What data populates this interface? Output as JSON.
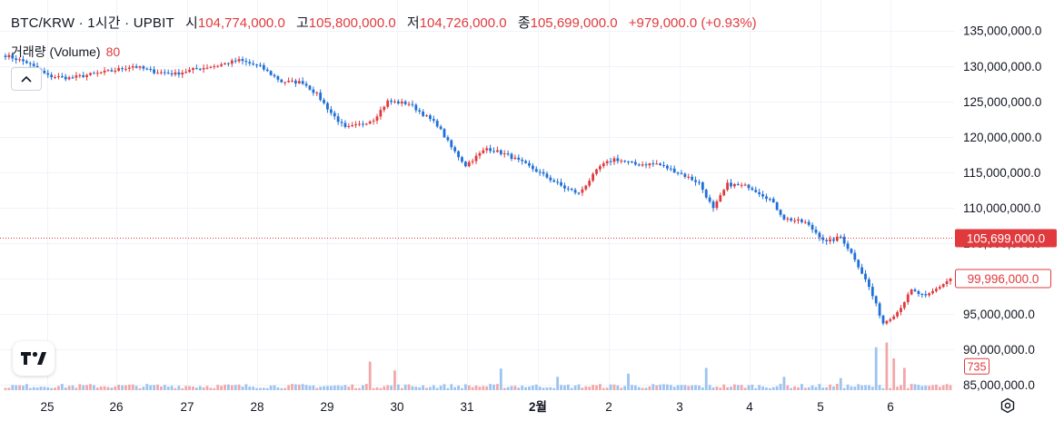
{
  "legend": {
    "symbol": "BTC/KRW · 1시간 · UPBIT",
    "open_label": "시",
    "open_value": "104,774,000.0",
    "high_label": "고",
    "high_value": "105,800,000.0",
    "low_label": "저",
    "low_value": "104,726,000.0",
    "close_label": "종",
    "close_value": "105,699,000.0",
    "change": "+979,000.0 (+0.93%)"
  },
  "volume_legend": {
    "label": "거래량 (Volume)",
    "value": "80"
  },
  "logo_text": "17",
  "colors": {
    "up": "#e03a3e",
    "down": "#1f6fd8",
    "grid": "#f0f3fa",
    "axis_text": "#131722",
    "price_line": "#e03a3e",
    "volume_up": "#f2a7a9",
    "volume_down": "#9dc3ef"
  },
  "chart_data": {
    "type": "candlestick",
    "symbol": "BTC/KRW",
    "interval": "1시간",
    "exchange": "UPBIT",
    "x_tick_labels": [
      "25",
      "26",
      "27",
      "28",
      "29",
      "30",
      "31",
      "2월",
      "2",
      "3",
      "4",
      "5",
      "6"
    ],
    "y_tick_labels": [
      "135,000,000.0",
      "130,000,000.0",
      "125,000,000.0",
      "120,000,000.0",
      "115,000,000.0",
      "110,000,000.0",
      "105,000,000.0",
      "100,000,000.0",
      "95,000,000.0",
      "90,000,000.0",
      "85,000,000.0"
    ],
    "y_ticks": [
      135000000,
      130000000,
      125000000,
      120000000,
      115000000,
      110000000,
      105000000,
      100000000,
      95000000,
      90000000,
      85000000
    ],
    "ylim": [
      84500000,
      136500000
    ],
    "price_trajectory": [
      [
        0,
        131500000
      ],
      [
        6,
        130500000
      ],
      [
        12,
        128600000
      ],
      [
        18,
        128300000
      ],
      [
        24,
        128800000
      ],
      [
        30,
        129300000
      ],
      [
        36,
        130000000
      ],
      [
        42,
        129200000
      ],
      [
        48,
        128900000
      ],
      [
        54,
        129600000
      ],
      [
        60,
        130100000
      ],
      [
        66,
        130800000
      ],
      [
        72,
        129900000
      ],
      [
        78,
        127800000
      ],
      [
        84,
        127700000
      ],
      [
        88,
        126000000
      ],
      [
        92,
        123400000
      ],
      [
        96,
        121200000
      ],
      [
        100,
        121700000
      ],
      [
        104,
        122500000
      ],
      [
        108,
        125000000
      ],
      [
        114,
        124700000
      ],
      [
        118,
        123200000
      ],
      [
        122,
        121700000
      ],
      [
        126,
        118500000
      ],
      [
        130,
        116000000
      ],
      [
        136,
        118400000
      ],
      [
        142,
        117400000
      ],
      [
        148,
        115800000
      ],
      [
        152,
        114600000
      ],
      [
        158,
        112800000
      ],
      [
        162,
        112000000
      ],
      [
        168,
        115800000
      ],
      [
        172,
        116900000
      ],
      [
        178,
        116100000
      ],
      [
        184,
        116200000
      ],
      [
        190,
        115000000
      ],
      [
        196,
        113500000
      ],
      [
        200,
        109800000
      ],
      [
        204,
        113300000
      ],
      [
        210,
        113000000
      ],
      [
        216,
        111200000
      ],
      [
        220,
        108500000
      ],
      [
        226,
        107900000
      ],
      [
        232,
        105100000
      ],
      [
        236,
        105900000
      ],
      [
        240,
        102800000
      ],
      [
        244,
        98800000
      ],
      [
        248,
        93700000
      ],
      [
        252,
        95300000
      ],
      [
        256,
        98300000
      ],
      [
        260,
        97400000
      ],
      [
        264,
        98900000
      ],
      [
        267,
        99996000
      ]
    ],
    "price_markers": [
      {
        "label": "105,699,000.0",
        "value": 105699000,
        "style": "filled"
      },
      {
        "label": "99,996,000.0",
        "value": 99996000,
        "style": "outline"
      }
    ],
    "volume_marker": {
      "label": "735",
      "value": 735
    },
    "volume_spikes": [
      {
        "x": 103,
        "value": 900
      },
      {
        "x": 110,
        "value": 620
      },
      {
        "x": 140,
        "value": 680
      },
      {
        "x": 156,
        "value": 420
      },
      {
        "x": 176,
        "value": 520
      },
      {
        "x": 198,
        "value": 700
      },
      {
        "x": 220,
        "value": 420
      },
      {
        "x": 236,
        "value": 380
      },
      {
        "x": 246,
        "value": 1350
      },
      {
        "x": 249,
        "value": 1500
      },
      {
        "x": 251,
        "value": 1000
      },
      {
        "x": 254,
        "value": 700
      }
    ]
  }
}
